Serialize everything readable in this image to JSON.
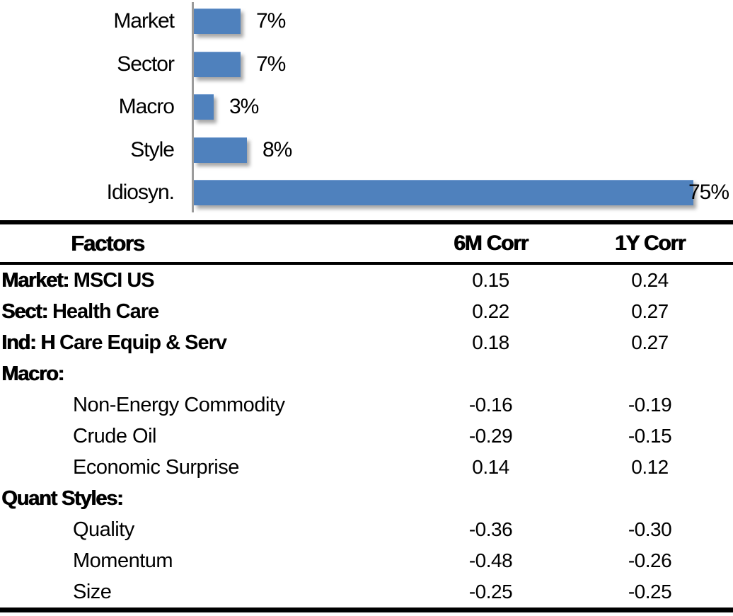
{
  "chart_data": [
    {
      "type": "bar",
      "orientation": "horizontal",
      "title": "",
      "categories": [
        "Market",
        "Sector",
        "Macro",
        "Style",
        "Idiosyn."
      ],
      "values": [
        7,
        7,
        3,
        8,
        75
      ],
      "value_labels": [
        "7%",
        "7%",
        "3%",
        "8%",
        "75%"
      ],
      "xlim": [
        0,
        80
      ],
      "grid": false,
      "legend": "none",
      "bar_color": "#4F81BD",
      "axis_color": "#9B9B9B",
      "label_color": "#000000"
    },
    {
      "type": "table",
      "headers": [
        "Factors",
        "6M Corr",
        "1Y Corr"
      ],
      "rows": [
        {
          "prefix": "Market:",
          "label": " MSCI US",
          "c6m": "0.15",
          "c1y": "0.24"
        },
        {
          "prefix": "Sect:",
          "label": " Health Care",
          "c6m": "0.22",
          "c1y": "0.27"
        },
        {
          "prefix": "Ind: H",
          "label": " Care Equip & Serv",
          "c6m": "0.18",
          "c1y": "0.27"
        },
        {
          "prefix": "Macro:",
          "label": "",
          "c6m": "",
          "c1y": ""
        },
        {
          "prefix": "",
          "label": "Non-Energy Commodity",
          "c6m": "-0.16",
          "c1y": "-0.19"
        },
        {
          "prefix": "",
          "label": "Crude Oil",
          "c6m": "-0.29",
          "c1y": "-0.15"
        },
        {
          "prefix": "",
          "label": "Economic Surprise",
          "c6m": "0.14",
          "c1y": "0.12"
        },
        {
          "prefix": "Quant Styles:",
          "label": "",
          "c6m": "",
          "c1y": ""
        },
        {
          "prefix": "",
          "label": "Quality",
          "c6m": "-0.36",
          "c1y": "-0.30"
        },
        {
          "prefix": "",
          "label": "Momentum",
          "c6m": "-0.48",
          "c1y": "-0.26"
        },
        {
          "prefix": "",
          "label": "Size",
          "c6m": "-0.25",
          "c1y": "-0.25"
        }
      ]
    }
  ]
}
